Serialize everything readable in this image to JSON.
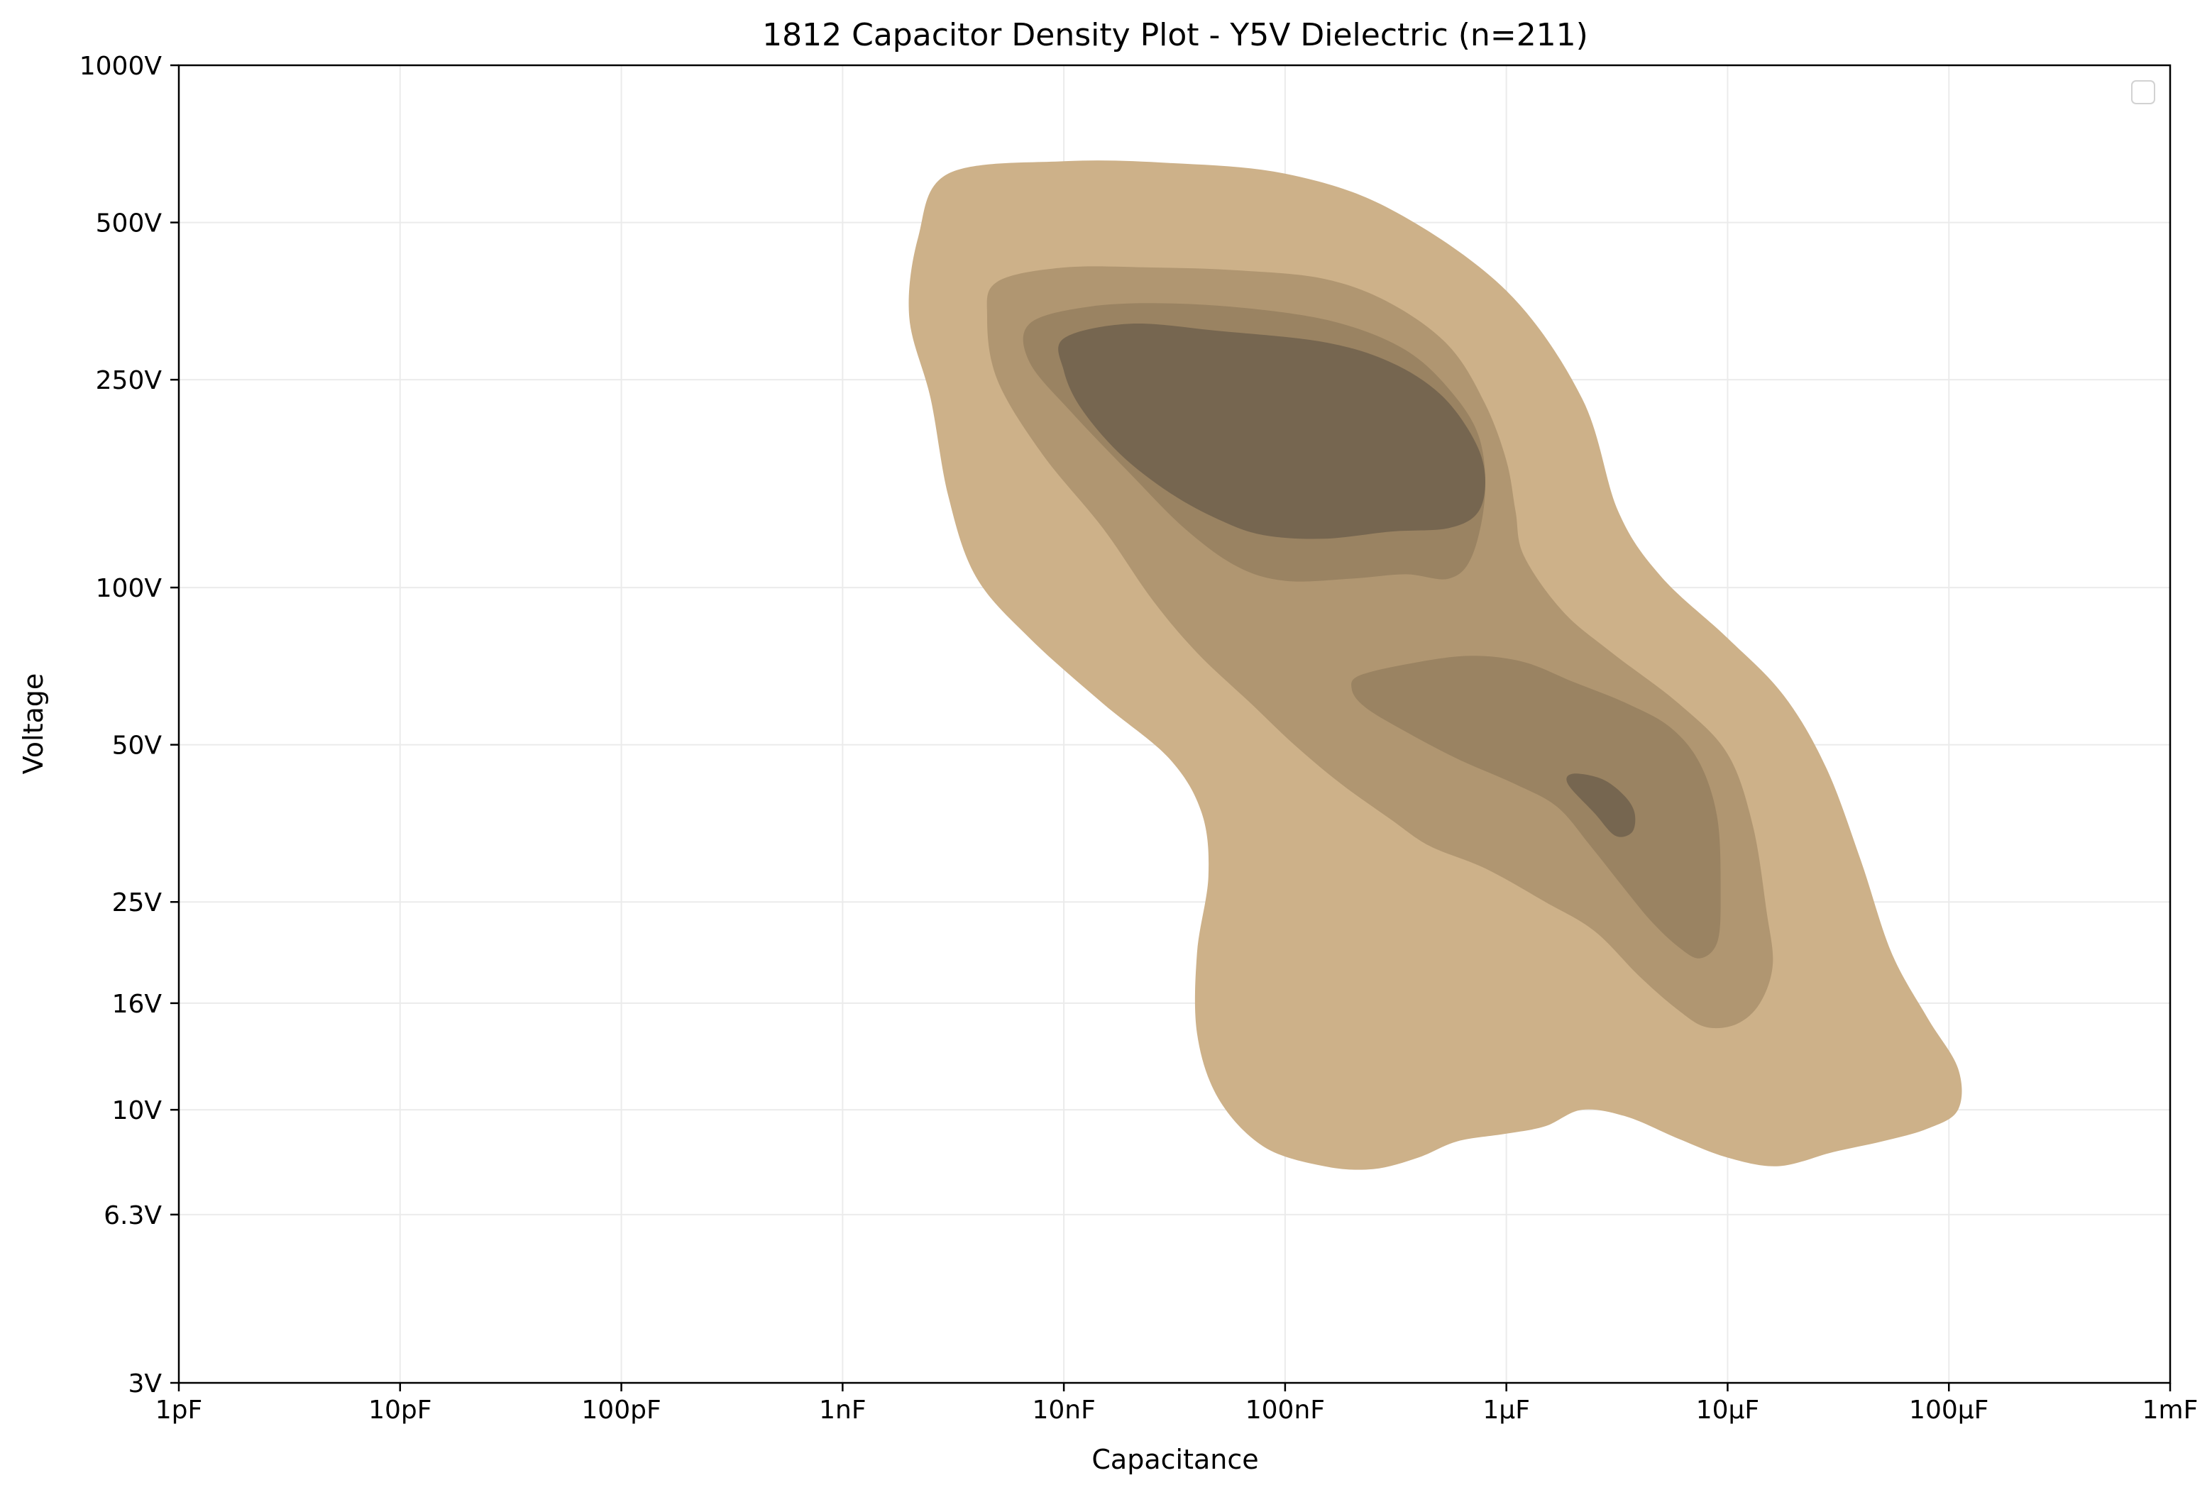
{
  "chart_data": {
    "type": "density-contour",
    "title": "1812 Capacitor Density Plot - Y5V Dielectric (n=211)",
    "xlabel": "Capacitance",
    "ylabel": "Voltage",
    "x_scale": "log",
    "y_scale": "log",
    "x_unit": "F",
    "y_unit": "V",
    "xlim": [
      1e-12,
      0.001
    ],
    "ylim": [
      3,
      1000
    ],
    "x_ticks": [
      {
        "value": 1e-12,
        "label": "1pF"
      },
      {
        "value": 1e-11,
        "label": "10pF"
      },
      {
        "value": 1e-10,
        "label": "100pF"
      },
      {
        "value": 1e-09,
        "label": "1nF"
      },
      {
        "value": 1e-08,
        "label": "10nF"
      },
      {
        "value": 1e-07,
        "label": "100nF"
      },
      {
        "value": 1e-06,
        "label": "1µF"
      },
      {
        "value": 1e-05,
        "label": "10µF"
      },
      {
        "value": 0.0001,
        "label": "100µF"
      },
      {
        "value": 0.001,
        "label": "1mF"
      }
    ],
    "y_ticks": [
      {
        "value": 3,
        "label": "3V"
      },
      {
        "value": 6.3,
        "label": "6.3V"
      },
      {
        "value": 10,
        "label": "10V"
      },
      {
        "value": 16,
        "label": "16V"
      },
      {
        "value": 25,
        "label": "25V"
      },
      {
        "value": 50,
        "label": "50V"
      },
      {
        "value": 100,
        "label": "100V"
      },
      {
        "value": 250,
        "label": "250V"
      },
      {
        "value": 500,
        "label": "500V"
      },
      {
        "value": 1000,
        "label": "1000V"
      }
    ],
    "grid": true,
    "legend": {
      "placement": "top-right",
      "entries": []
    },
    "levels": [
      {
        "level": 1,
        "color": "#cdb189",
        "regions": [
          [
            [
              3e-09,
              620
            ],
            [
              1e-08,
              655
            ],
            [
              3e-08,
              650
            ],
            [
              1e-07,
              620
            ],
            [
              3e-07,
              530
            ],
            [
              1e-06,
              370
            ],
            [
              2.2e-06,
              230
            ],
            [
              3.2e-06,
              140
            ],
            [
              5e-06,
              105
            ],
            [
              1e-05,
              80
            ],
            [
              1.8e-05,
              62
            ],
            [
              2.8e-05,
              45
            ],
            [
              4e-05,
              30
            ],
            [
              5.5e-05,
              20
            ],
            [
              8e-05,
              15
            ],
            [
              0.00011,
              12
            ],
            [
              0.00011,
              10
            ],
            [
              8e-05,
              9.2
            ],
            [
              5e-05,
              8.7
            ],
            [
              3e-05,
              8.3
            ],
            [
              1.7e-05,
              7.8
            ],
            [
              1e-05,
              8.1
            ],
            [
              6e-06,
              8.8
            ],
            [
              3.5e-06,
              9.7
            ],
            [
              2.2e-06,
              10.0
            ],
            [
              1.5e-06,
              9.3
            ],
            [
              1e-06,
              9.0
            ],
            [
              6e-07,
              8.7
            ],
            [
              4e-07,
              8.1
            ],
            [
              2.5e-07,
              7.7
            ],
            [
              1.5e-07,
              7.8
            ],
            [
              8e-08,
              8.5
            ],
            [
              5e-08,
              10.5
            ],
            [
              4e-08,
              14
            ],
            [
              4e-08,
              20
            ],
            [
              4.5e-08,
              28
            ],
            [
              4.2e-08,
              37
            ],
            [
              3e-08,
              47
            ],
            [
              1.5e-08,
              60
            ],
            [
              7e-09,
              80
            ],
            [
              4e-09,
              105
            ],
            [
              3e-09,
              150
            ],
            [
              2.5e-09,
              230
            ],
            [
              2e-09,
              330
            ],
            [
              2.2e-09,
              470
            ]
          ]
        ]
      },
      {
        "level": 2,
        "color": "#b09671",
        "regions": [
          [
            [
              5e-09,
              385
            ],
            [
              1e-08,
              410
            ],
            [
              2.5e-08,
              410
            ],
            [
              6e-08,
              405
            ],
            [
              1.5e-07,
              390
            ],
            [
              3e-07,
              350
            ],
            [
              5.5e-07,
              290
            ],
            [
              8e-07,
              225
            ],
            [
              1e-06,
              175
            ],
            [
              1.1e-06,
              140
            ],
            [
              1.2e-06,
              115
            ],
            [
              1.8e-06,
              90
            ],
            [
              3e-06,
              75
            ],
            [
              6e-06,
              60
            ],
            [
              1e-05,
              48
            ],
            [
              1.3e-05,
              35
            ],
            [
              1.5e-05,
              24
            ],
            [
              1.6e-05,
              19
            ],
            [
              1.4e-05,
              16
            ],
            [
              1.1e-05,
              14.6
            ],
            [
              8e-06,
              14.4
            ],
            [
              6e-06,
              15.5
            ],
            [
              4e-06,
              18
            ],
            [
              2.5e-06,
              22
            ],
            [
              1.5e-06,
              25
            ],
            [
              8e-07,
              29
            ],
            [
              4.5e-07,
              32
            ],
            [
              3e-07,
              36
            ],
            [
              1.8e-07,
              42
            ],
            [
              1.1e-07,
              50
            ],
            [
              7e-08,
              60
            ],
            [
              4e-08,
              75
            ],
            [
              2.5e-08,
              95
            ],
            [
              1.5e-08,
              130
            ],
            [
              8e-09,
              180
            ],
            [
              5e-09,
              250
            ],
            [
              4.5e-09,
              330
            ]
          ]
        ]
      },
      {
        "level": 3,
        "color": "#9a8362",
        "regions": [
          [
            [
              7e-09,
              320
            ],
            [
              1.3e-08,
              345
            ],
            [
              3e-08,
              350
            ],
            [
              8e-08,
              340
            ],
            [
              1.8e-07,
              320
            ],
            [
              3.5e-07,
              285
            ],
            [
              5.5e-07,
              240
            ],
            [
              7.5e-07,
              195
            ],
            [
              8e-07,
              150
            ],
            [
              7e-07,
              115
            ],
            [
              5.5e-07,
              104
            ],
            [
              3.5e-07,
              106
            ],
            [
              2e-07,
              104
            ],
            [
              1e-07,
              103
            ],
            [
              6e-08,
              110
            ],
            [
              3.5e-08,
              130
            ],
            [
              2e-08,
              165
            ],
            [
              1.1e-08,
              215
            ],
            [
              7e-09,
              270
            ]
          ],
          [
            [
              2.2e-07,
              68
            ],
            [
              4e-07,
              72
            ],
            [
              7e-07,
              74
            ],
            [
              1.2e-06,
              72
            ],
            [
              2e-06,
              66
            ],
            [
              3.5e-06,
              60
            ],
            [
              5.5e-06,
              54
            ],
            [
              7.5e-06,
              46
            ],
            [
              9e-06,
              36
            ],
            [
              9.3e-06,
              26
            ],
            [
              9e-06,
              21
            ],
            [
              7.5e-06,
              19.5
            ],
            [
              6e-06,
              20.5
            ],
            [
              4.5e-06,
              23
            ],
            [
              3.3e-06,
              27
            ],
            [
              2.4e-06,
              32
            ],
            [
              1.7e-06,
              38
            ],
            [
              1.1e-06,
              42
            ],
            [
              6e-07,
              47
            ],
            [
              3.5e-07,
              53
            ],
            [
              2.3e-07,
              59
            ],
            [
              2e-07,
              64
            ]
          ]
        ]
      },
      {
        "level": 4,
        "color": "#766650",
        "regions": [
          [
            [
              1e-08,
              300
            ],
            [
              2e-08,
              320
            ],
            [
              5e-08,
              310
            ],
            [
              1.5e-07,
              295
            ],
            [
              3e-07,
              270
            ],
            [
              5e-07,
              235
            ],
            [
              7e-07,
              195
            ],
            [
              8e-07,
              165
            ],
            [
              7.5e-07,
              140
            ],
            [
              5.5e-07,
              130
            ],
            [
              3e-07,
              128
            ],
            [
              1.5e-07,
              124
            ],
            [
              8e-08,
              126
            ],
            [
              5e-08,
              135
            ],
            [
              3e-08,
              152
            ],
            [
              1.8e-08,
              180
            ],
            [
              1.2e-08,
              220
            ],
            [
              1e-08,
              260
            ]
          ],
          [
            [
              2e-06,
              44
            ],
            [
              2.7e-06,
              43
            ],
            [
              3.4e-06,
              40
            ],
            [
              3.8e-06,
              37
            ],
            [
              3.7e-06,
              34
            ],
            [
              3.1e-06,
              33.5
            ],
            [
              2.5e-06,
              37
            ],
            [
              1.9e-06,
              42
            ]
          ]
        ]
      }
    ]
  }
}
